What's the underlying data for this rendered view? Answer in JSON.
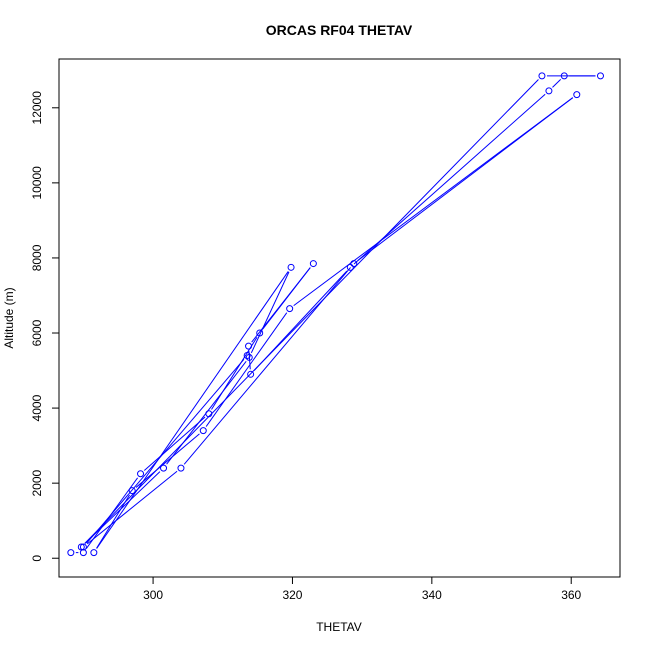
{
  "chart_data": {
    "type": "line",
    "title": "ORCAS RF04 THETAV",
    "xlabel": "THETAV",
    "ylabel": "Altitude (m)",
    "xlim": [
      286.5,
      367.0
    ],
    "ylim": [
      -500,
      13300
    ],
    "xticks": [
      300,
      320,
      340,
      360
    ],
    "yticks": [
      0,
      2000,
      4000,
      6000,
      8000,
      10000,
      12000
    ],
    "grid": false,
    "legend": "none",
    "line_color": "#0000ff",
    "marker": "open-circle",
    "series": [
      {
        "x": [
          288.2,
          290.0,
          298.2,
          308.0,
          315.3,
          323.0,
          313.7,
          314.0,
          328.3,
          356.8,
          359.0,
          364.2,
          355.8,
          289.7,
          301.5,
          313.8,
          319.8,
          291.5,
          297.0,
          307.2,
          319.6,
          360.8,
          328.8,
          304.0,
          290.0,
          313.5
        ],
        "y": [
          150,
          150,
          2250,
          3850,
          6000,
          7850,
          5650,
          4900,
          7750,
          12450,
          12850,
          12850,
          12850,
          300,
          2400,
          5350,
          7750,
          150,
          1800,
          3400,
          6650,
          12350,
          7850,
          2400,
          300,
          5400
        ]
      }
    ]
  }
}
